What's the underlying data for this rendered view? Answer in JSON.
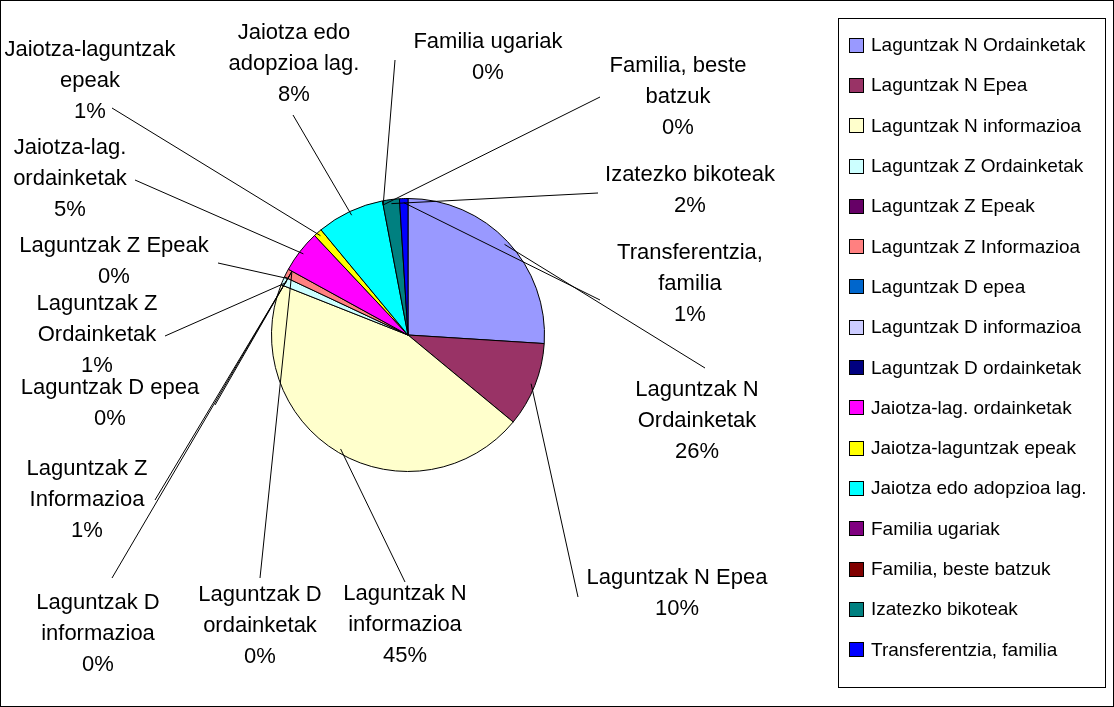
{
  "chart_data": {
    "type": "pie",
    "categories": [
      "Laguntzak N Ordainketak",
      "Laguntzak N Epea",
      "Laguntzak N informazioa",
      "Laguntzak Z Ordainketak",
      "Laguntzak Z Epeak",
      "Laguntzak Z Informazioa",
      "Laguntzak D epea",
      "Laguntzak D informazioa",
      "Laguntzak D ordainketak",
      "Jaiotza-lag. ordainketak",
      "Jaiotza-laguntzak epeak",
      "Jaiotza edo adopzioa lag.",
      "Familia ugariak",
      "Familia, beste batzuk",
      "Izatezko bikoteak",
      "Transferentzia, familia"
    ],
    "values": [
      26,
      10,
      45,
      1,
      0,
      1,
      0,
      0,
      0,
      5,
      1,
      8,
      0,
      0,
      2,
      1
    ],
    "value_labels": [
      "26%",
      "10%",
      "45%",
      "1%",
      "0%",
      "1%",
      "0%",
      "0%",
      "0%",
      "5%",
      "1%",
      "8%",
      "0%",
      "0%",
      "2%",
      "1%"
    ],
    "colors": [
      "#9999ff",
      "#993366",
      "#ffffcc",
      "#ccffff",
      "#660066",
      "#ff8080",
      "#0066cc",
      "#ccccff",
      "#000080",
      "#ff00ff",
      "#ffff00",
      "#00ffff",
      "#800080",
      "#800000",
      "#008080",
      "#0000ff"
    ],
    "legend": "right"
  }
}
